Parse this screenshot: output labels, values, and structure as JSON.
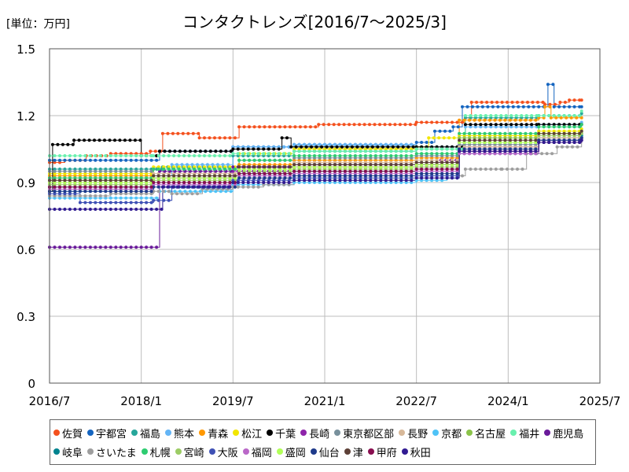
{
  "header": {
    "unit": "[単位：万円]",
    "title": "コンタクトレンズ[2016/7～2025/3]"
  },
  "chart_data": {
    "type": "line",
    "title": "コンタクトレンズ[2016/7～2025/3]",
    "ylabel": "単位：万円",
    "x_range": [
      2016.5,
      2025.5
    ],
    "x_ticks": [
      {
        "label": "2016/7",
        "value": 2016.5
      },
      {
        "label": "2018/1",
        "value": 2018.0
      },
      {
        "label": "2019/7",
        "value": 2019.5
      },
      {
        "label": "2021/1",
        "value": 2021.0
      },
      {
        "label": "2022/7",
        "value": 2022.5
      },
      {
        "label": "2024/1",
        "value": 2024.0
      },
      {
        "label": "2025/7",
        "value": 2025.5
      }
    ],
    "ylim": [
      0,
      1.5
    ],
    "y_ticks": [
      {
        "label": "0",
        "value": 0
      },
      {
        "label": "0.3",
        "value": 0.3
      },
      {
        "label": "0.6",
        "value": 0.6
      },
      {
        "label": "0.9",
        "value": 0.9
      },
      {
        "label": "1.2",
        "value": 1.2
      },
      {
        "label": "1.5",
        "value": 1.5
      }
    ],
    "series": [
      {
        "name": "佐賀",
        "color": "#f4511e",
        "points": [
          [
            2016.5,
            0.99
          ],
          [
            2016.75,
            1.0
          ],
          [
            2017.1,
            1.02
          ],
          [
            2017.5,
            1.03
          ],
          [
            2018.15,
            1.04
          ],
          [
            2018.35,
            1.12
          ],
          [
            2018.95,
            1.1
          ],
          [
            2019.6,
            1.15
          ],
          [
            2020.9,
            1.16
          ],
          [
            2022.5,
            1.17
          ],
          [
            2023.3,
            1.19
          ],
          [
            2023.4,
            1.26
          ],
          [
            2024.6,
            1.25
          ],
          [
            2024.85,
            1.26
          ],
          [
            2025.0,
            1.27
          ],
          [
            2025.2,
            1.27
          ]
        ]
      },
      {
        "name": "宇都宮",
        "color": "#1565c0",
        "points": [
          [
            2016.5,
            1.0
          ],
          [
            2018.3,
            1.04
          ],
          [
            2019.5,
            1.06
          ],
          [
            2020.5,
            1.07
          ],
          [
            2022.5,
            1.08
          ],
          [
            2022.8,
            1.13
          ],
          [
            2023.1,
            1.15
          ],
          [
            2023.25,
            1.24
          ],
          [
            2024.5,
            1.24
          ],
          [
            2024.65,
            1.34
          ],
          [
            2024.75,
            1.24
          ],
          [
            2025.2,
            1.24
          ]
        ]
      },
      {
        "name": "福島",
        "color": "#26a69a",
        "points": [
          [
            2016.5,
            0.96
          ],
          [
            2018.35,
            0.97
          ],
          [
            2019.5,
            1.02
          ],
          [
            2020.5,
            1.04
          ],
          [
            2022.5,
            1.05
          ],
          [
            2023.3,
            1.19
          ],
          [
            2024.5,
            1.2
          ],
          [
            2025.2,
            1.21
          ]
        ]
      },
      {
        "name": "熊本",
        "color": "#64b5f6",
        "points": [
          [
            2016.5,
            0.86
          ],
          [
            2017.5,
            0.87
          ],
          [
            2018.2,
            0.93
          ],
          [
            2018.5,
            0.98
          ],
          [
            2019.5,
            1.06
          ],
          [
            2020.5,
            1.07
          ],
          [
            2022.5,
            1.06
          ],
          [
            2023.3,
            1.15
          ],
          [
            2024.5,
            1.16
          ],
          [
            2025.2,
            1.17
          ]
        ]
      },
      {
        "name": "青森",
        "color": "#ff9800",
        "points": [
          [
            2016.5,
            0.93
          ],
          [
            2018.2,
            0.96
          ],
          [
            2019.6,
            0.98
          ],
          [
            2020.5,
            1.0
          ],
          [
            2022.5,
            1.01
          ],
          [
            2023.2,
            1.18
          ],
          [
            2024.5,
            1.19
          ],
          [
            2024.6,
            1.24
          ],
          [
            2024.7,
            1.19
          ],
          [
            2025.2,
            1.19
          ]
        ]
      },
      {
        "name": "松江",
        "color": "#f2e600",
        "points": [
          [
            2016.5,
            0.94
          ],
          [
            2018.2,
            0.97
          ],
          [
            2019.6,
            1.03
          ],
          [
            2020.5,
            1.05
          ],
          [
            2022.5,
            1.06
          ],
          [
            2022.7,
            1.1
          ],
          [
            2023.2,
            1.11
          ],
          [
            2024.5,
            1.13
          ],
          [
            2025.2,
            1.14
          ]
        ]
      },
      {
        "name": "千葉",
        "color": "#000000",
        "points": [
          [
            2016.5,
            0.86
          ],
          [
            2016.55,
            1.07
          ],
          [
            2016.9,
            1.09
          ],
          [
            2017.9,
            1.09
          ],
          [
            2018.0,
            1.02
          ],
          [
            2018.3,
            1.04
          ],
          [
            2019.5,
            1.05
          ],
          [
            2020.3,
            1.1
          ],
          [
            2020.45,
            1.06
          ],
          [
            2022.5,
            1.06
          ],
          [
            2023.3,
            1.16
          ],
          [
            2024.5,
            1.16
          ],
          [
            2025.2,
            1.16
          ]
        ]
      },
      {
        "name": "長崎",
        "color": "#8e24aa",
        "points": [
          [
            2016.5,
            0.9
          ],
          [
            2018.2,
            0.92
          ],
          [
            2019.5,
            0.95
          ],
          [
            2020.5,
            0.97
          ],
          [
            2022.5,
            0.98
          ],
          [
            2022.9,
            1.0
          ],
          [
            2023.2,
            1.06
          ],
          [
            2024.5,
            1.09
          ],
          [
            2025.2,
            1.1
          ]
        ]
      },
      {
        "name": "東京都区部",
        "color": "#78909c",
        "points": [
          [
            2016.5,
            0.95
          ],
          [
            2018.2,
            0.96
          ],
          [
            2019.6,
            1.0
          ],
          [
            2020.5,
            1.01
          ],
          [
            2022.5,
            1.02
          ],
          [
            2023.2,
            1.07
          ],
          [
            2024.5,
            1.1
          ],
          [
            2025.2,
            1.12
          ]
        ]
      },
      {
        "name": "長野",
        "color": "#d7b899",
        "points": [
          [
            2016.5,
            0.92
          ],
          [
            2018.2,
            0.94
          ],
          [
            2019.6,
            0.97
          ],
          [
            2020.5,
            0.99
          ],
          [
            2022.5,
            1.0
          ],
          [
            2023.2,
            1.06
          ],
          [
            2024.5,
            1.1
          ],
          [
            2025.2,
            1.12
          ]
        ]
      },
      {
        "name": "京都",
        "color": "#4fc3f7",
        "points": [
          [
            2016.5,
            0.83
          ],
          [
            2018.3,
            0.86
          ],
          [
            2019.5,
            0.89
          ],
          [
            2020.5,
            0.9
          ],
          [
            2022.5,
            0.91
          ],
          [
            2023.0,
            0.92
          ],
          [
            2023.2,
            1.04
          ],
          [
            2024.5,
            1.09
          ],
          [
            2025.2,
            1.11
          ]
        ]
      },
      {
        "name": "名古屋",
        "color": "#8bc34a",
        "points": [
          [
            2016.5,
            0.91
          ],
          [
            2018.2,
            0.93
          ],
          [
            2019.6,
            0.97
          ],
          [
            2020.5,
            0.98
          ],
          [
            2022.5,
            0.99
          ],
          [
            2023.2,
            1.1
          ],
          [
            2024.5,
            1.12
          ],
          [
            2025.2,
            1.13
          ]
        ]
      },
      {
        "name": "福井",
        "color": "#69f0ae",
        "points": [
          [
            2016.5,
            1.02
          ],
          [
            2018.2,
            1.02
          ],
          [
            2019.5,
            1.03
          ],
          [
            2020.5,
            1.04
          ],
          [
            2022.5,
            1.05
          ],
          [
            2023.3,
            1.2
          ],
          [
            2024.5,
            1.2
          ],
          [
            2025.2,
            1.22
          ]
        ]
      },
      {
        "name": "鹿児島",
        "color": "#6a1b9a",
        "points": [
          [
            2016.5,
            0.61
          ],
          [
            2018.25,
            0.61
          ],
          [
            2018.3,
            0.95
          ],
          [
            2019.5,
            0.97
          ],
          [
            2020.5,
            0.98
          ],
          [
            2022.5,
            0.98
          ],
          [
            2023.2,
            1.05
          ],
          [
            2024.5,
            1.09
          ],
          [
            2025.2,
            1.1
          ]
        ]
      },
      {
        "name": "岐阜",
        "color": "#00838f",
        "points": [
          [
            2016.5,
            0.88
          ],
          [
            2018.2,
            0.9
          ],
          [
            2019.6,
            0.94
          ],
          [
            2020.5,
            0.95
          ],
          [
            2022.5,
            0.96
          ],
          [
            2023.2,
            1.05
          ],
          [
            2024.5,
            1.09
          ],
          [
            2025.2,
            1.11
          ]
        ]
      },
      {
        "name": "さいたま",
        "color": "#9e9e9e",
        "points": [
          [
            2016.5,
            0.84
          ],
          [
            2017.5,
            0.85
          ],
          [
            2018.2,
            0.86
          ],
          [
            2018.5,
            0.85
          ],
          [
            2019.0,
            0.87
          ],
          [
            2019.5,
            0.88
          ],
          [
            2020.0,
            0.89
          ],
          [
            2020.5,
            0.91
          ],
          [
            2022.5,
            0.93
          ],
          [
            2023.3,
            0.96
          ],
          [
            2023.9,
            0.96
          ],
          [
            2024.3,
            1.03
          ],
          [
            2024.8,
            1.06
          ],
          [
            2025.2,
            1.1
          ]
        ]
      },
      {
        "name": "札幌",
        "color": "#2ecc71",
        "points": [
          [
            2016.5,
            0.92
          ],
          [
            2018.2,
            0.96
          ],
          [
            2019.6,
            1.0
          ],
          [
            2020.5,
            1.02
          ],
          [
            2022.5,
            1.03
          ],
          [
            2023.2,
            1.12
          ],
          [
            2024.5,
            1.15
          ],
          [
            2025.2,
            1.16
          ]
        ]
      },
      {
        "name": "宮崎",
        "color": "#9ccc65",
        "points": [
          [
            2016.5,
            0.89
          ],
          [
            2018.2,
            0.91
          ],
          [
            2019.6,
            0.95
          ],
          [
            2020.5,
            0.96
          ],
          [
            2022.5,
            0.97
          ],
          [
            2023.2,
            1.08
          ],
          [
            2024.5,
            1.11
          ],
          [
            2025.2,
            1.12
          ]
        ]
      },
      {
        "name": "大阪",
        "color": "#3f51b5",
        "points": [
          [
            2016.5,
            0.85
          ],
          [
            2017.0,
            0.81
          ],
          [
            2018.2,
            0.82
          ],
          [
            2018.5,
            0.88
          ],
          [
            2019.5,
            0.91
          ],
          [
            2020.5,
            0.92
          ],
          [
            2022.5,
            0.93
          ],
          [
            2023.2,
            1.03
          ],
          [
            2024.5,
            1.08
          ],
          [
            2025.2,
            1.1
          ]
        ]
      },
      {
        "name": "福岡",
        "color": "#ba68c8",
        "points": [
          [
            2016.5,
            0.87
          ],
          [
            2018.2,
            0.89
          ],
          [
            2019.6,
            0.93
          ],
          [
            2020.5,
            0.94
          ],
          [
            2022.5,
            0.95
          ],
          [
            2023.2,
            1.03
          ],
          [
            2024.5,
            1.09
          ],
          [
            2025.2,
            1.1
          ]
        ]
      },
      {
        "name": "盛岡",
        "color": "#b2ff59",
        "points": [
          [
            2016.5,
            0.9
          ],
          [
            2018.2,
            0.92
          ],
          [
            2019.6,
            0.96
          ],
          [
            2020.5,
            0.97
          ],
          [
            2022.5,
            0.98
          ],
          [
            2023.2,
            1.08
          ],
          [
            2024.5,
            1.12
          ],
          [
            2025.2,
            1.13
          ]
        ]
      },
      {
        "name": "仙台",
        "color": "#1e3a8a",
        "points": [
          [
            2016.5,
            0.86
          ],
          [
            2018.2,
            0.88
          ],
          [
            2019.6,
            0.92
          ],
          [
            2020.5,
            0.93
          ],
          [
            2022.5,
            0.94
          ],
          [
            2023.2,
            1.05
          ],
          [
            2024.5,
            1.09
          ],
          [
            2025.2,
            1.1
          ]
        ]
      },
      {
        "name": "津",
        "color": "#5d4037",
        "points": [
          [
            2016.5,
            0.91
          ],
          [
            2018.2,
            0.93
          ],
          [
            2019.6,
            0.97
          ],
          [
            2020.5,
            0.98
          ],
          [
            2022.5,
            0.99
          ],
          [
            2023.2,
            1.09
          ],
          [
            2024.5,
            1.12
          ],
          [
            2025.2,
            1.13
          ]
        ]
      },
      {
        "name": "甲府",
        "color": "#880e4f",
        "points": [
          [
            2016.5,
            0.88
          ],
          [
            2018.2,
            0.9
          ],
          [
            2019.6,
            0.94
          ],
          [
            2020.5,
            0.95
          ],
          [
            2022.5,
            0.96
          ],
          [
            2023.2,
            1.04
          ],
          [
            2024.5,
            1.08
          ],
          [
            2025.2,
            1.09
          ]
        ]
      },
      {
        "name": "秋田",
        "color": "#311b92",
        "points": [
          [
            2016.5,
            0.78
          ],
          [
            2018.25,
            0.78
          ],
          [
            2018.35,
            0.88
          ],
          [
            2019.5,
            0.9
          ],
          [
            2020.5,
            0.91
          ],
          [
            2022.5,
            0.92
          ],
          [
            2023.2,
            1.04
          ],
          [
            2024.5,
            1.08
          ],
          [
            2025.2,
            1.09
          ]
        ]
      }
    ]
  }
}
